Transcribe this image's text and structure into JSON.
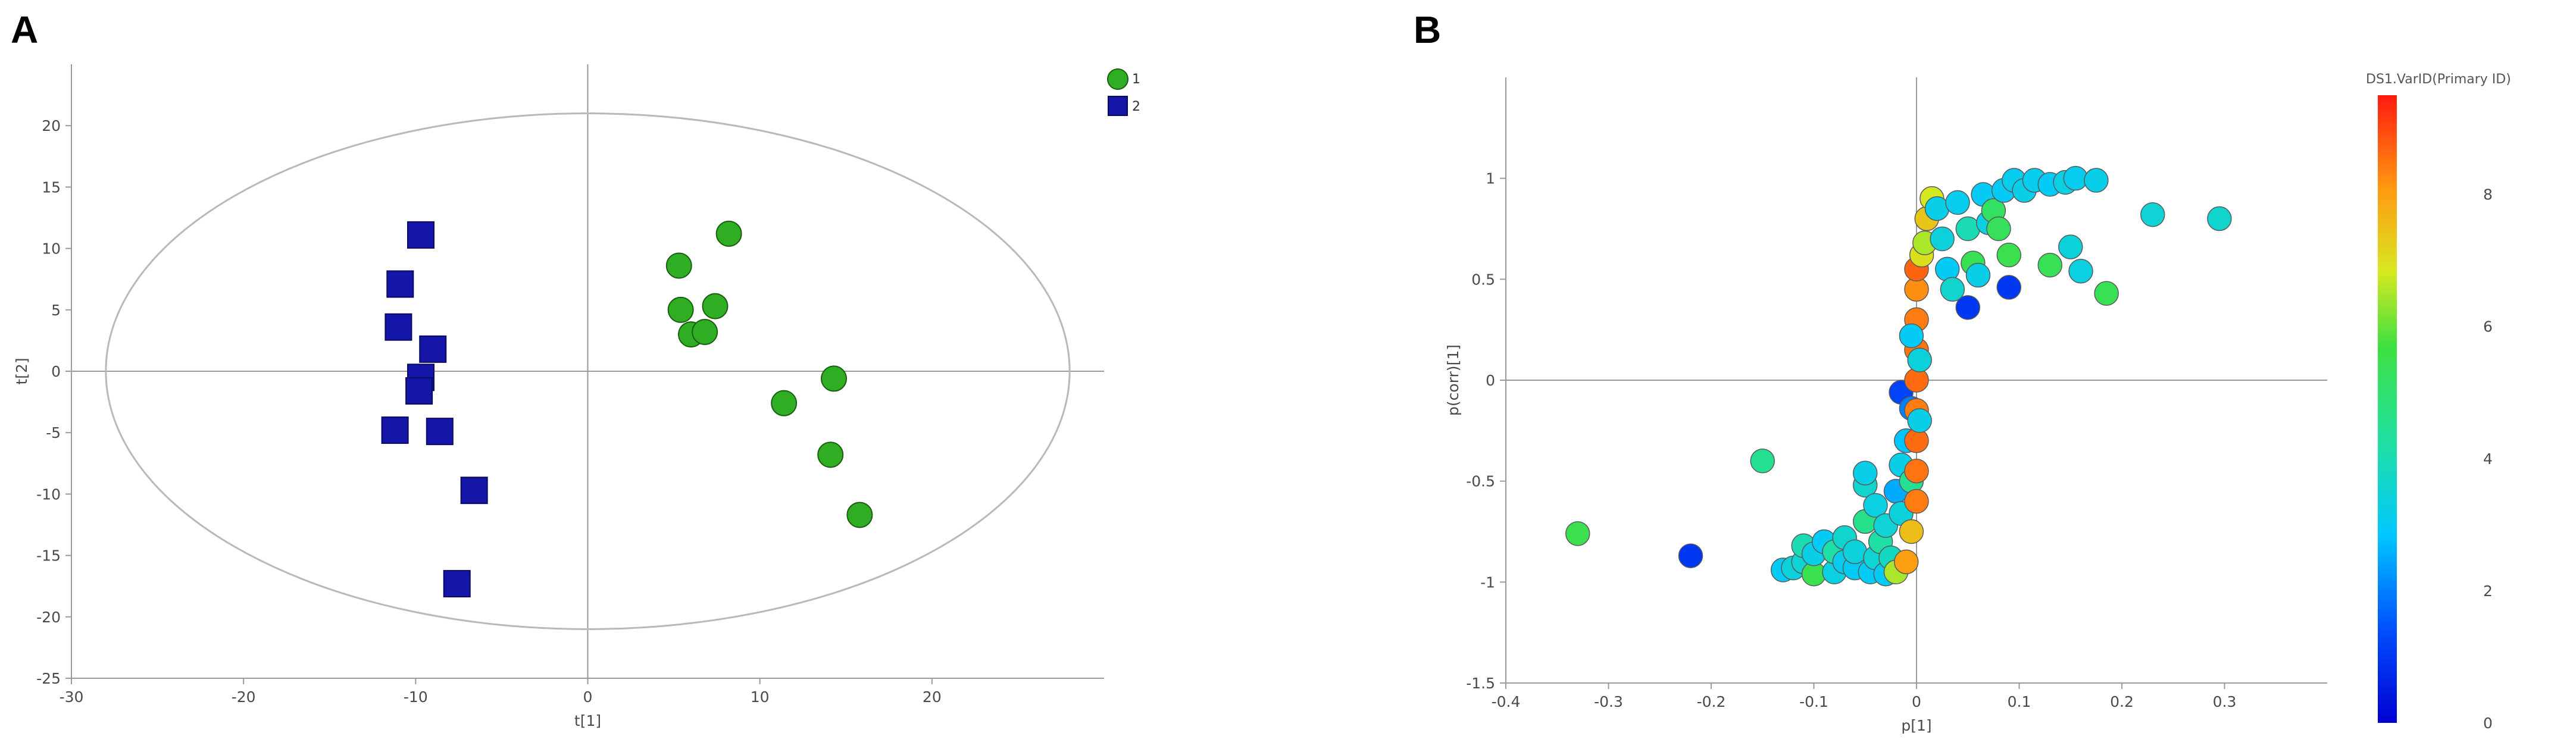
{
  "panels": [
    {
      "letter": "A"
    },
    {
      "letter": "B"
    }
  ],
  "chart_data": [
    {
      "type": "scatter",
      "xlabel": "t[1]",
      "ylabel": "t[2]",
      "xlim": [
        -30,
        30
      ],
      "ylim": [
        -25,
        25
      ],
      "xticks": [
        "-30",
        "-20",
        "-10",
        "0",
        "10",
        "20"
      ],
      "yticks": [
        "20",
        "15",
        "10",
        "5",
        "0",
        "-5",
        "-10",
        "-15",
        "-20",
        "-25"
      ],
      "legend": {
        "placement": "top-right"
      },
      "ellipse": {
        "cx": 0,
        "cy": 0,
        "rx": 28,
        "ry": 21
      },
      "series": [
        {
          "name": "1",
          "marker": "circle",
          "color": "#2fae24",
          "x": [
            5.3,
            8.2,
            5.4,
            7.4,
            6.0,
            6.8,
            11.4,
            14.3,
            14.1,
            15.8
          ],
          "y": [
            8.6,
            11.2,
            5.0,
            5.3,
            3.0,
            3.2,
            -2.6,
            -0.6,
            -6.8,
            -11.7
          ]
        },
        {
          "name": "2",
          "marker": "square",
          "color": "#1515a8",
          "x": [
            -9.7,
            -10.9,
            -11.0,
            -9.0,
            -9.7,
            -9.8,
            -11.2,
            -8.6,
            -6.6,
            -7.6
          ],
          "y": [
            11.1,
            7.1,
            3.6,
            1.8,
            -0.5,
            -1.6,
            -4.8,
            -4.9,
            -9.7,
            -17.3
          ]
        }
      ]
    },
    {
      "type": "scatter",
      "xlabel": "p[1]",
      "ylabel": "p(corr)[1]",
      "xlim": [
        -0.4,
        0.4
      ],
      "ylim": [
        -1.5,
        1.5
      ],
      "xticks": [
        "-0.4",
        "-0.3",
        "-0.2",
        "-0.1",
        "0",
        "0.1",
        "0.2",
        "0.3"
      ],
      "yticks": [
        "1",
        "0.5",
        "0",
        "-0.5",
        "-1",
        "-1.5"
      ],
      "colorbar": {
        "title": "DS1.VarID(Primary ID)",
        "ticks": [
          "8",
          "6",
          "4",
          "2",
          "0"
        ],
        "range": [
          0,
          9.5
        ]
      },
      "points": [
        [
          -0.33,
          -0.76,
          5.5
        ],
        [
          -0.22,
          -0.87,
          1.0
        ],
        [
          -0.15,
          -0.4,
          4.5
        ],
        [
          -0.13,
          -0.94,
          3.0
        ],
        [
          -0.12,
          -0.93,
          3.4
        ],
        [
          -0.11,
          -0.9,
          3.5
        ],
        [
          -0.11,
          -0.82,
          4.0
        ],
        [
          -0.1,
          -0.96,
          5.5
        ],
        [
          -0.1,
          -0.86,
          3.2
        ],
        [
          -0.09,
          -0.8,
          3.0
        ],
        [
          -0.08,
          -0.95,
          3.3
        ],
        [
          -0.08,
          -0.85,
          4.2
        ],
        [
          -0.07,
          -0.9,
          3.1
        ],
        [
          -0.07,
          -0.78,
          3.6
        ],
        [
          -0.06,
          -0.93,
          3.0
        ],
        [
          -0.06,
          -0.85,
          3.4
        ],
        [
          -0.05,
          -0.52,
          3.6
        ],
        [
          -0.05,
          -0.46,
          3.2
        ],
        [
          -0.05,
          -0.7,
          4.6
        ],
        [
          -0.045,
          -0.95,
          3.0
        ],
        [
          -0.04,
          -0.88,
          3.5
        ],
        [
          -0.04,
          -0.62,
          3.3
        ],
        [
          -0.035,
          -0.8,
          4.2
        ],
        [
          -0.03,
          -0.96,
          3.0
        ],
        [
          -0.03,
          -0.72,
          3.5
        ],
        [
          -0.025,
          -0.88,
          3.8
        ],
        [
          -0.02,
          -0.95,
          6.5
        ],
        [
          -0.02,
          -0.55,
          2.5
        ],
        [
          -0.015,
          -0.66,
          3.4
        ],
        [
          -0.01,
          -0.9,
          8.0
        ],
        [
          -0.015,
          -0.42,
          3.2
        ],
        [
          -0.01,
          -0.3,
          2.8
        ],
        [
          -0.005,
          -0.5,
          4.5
        ],
        [
          -0.005,
          -0.75,
          7.5
        ],
        [
          -0.015,
          -0.06,
          1.2
        ],
        [
          -0.005,
          -0.14,
          2.0
        ],
        [
          0.0,
          -0.6,
          8.4
        ],
        [
          0.0,
          -0.45,
          8.5
        ],
        [
          0.0,
          -0.3,
          8.6
        ],
        [
          0.0,
          -0.15,
          8.4
        ],
        [
          0.0,
          0.0,
          8.6
        ],
        [
          0.0,
          0.15,
          8.5
        ],
        [
          0.0,
          0.3,
          8.4
        ],
        [
          0.0,
          0.45,
          8.2
        ],
        [
          0.0,
          0.55,
          8.7
        ],
        [
          -0.005,
          0.22,
          3.0
        ],
        [
          0.003,
          -0.2,
          3.2
        ],
        [
          0.003,
          0.1,
          3.4
        ],
        [
          0.005,
          0.62,
          7.0
        ],
        [
          0.008,
          0.68,
          6.5
        ],
        [
          0.01,
          0.8,
          7.4
        ],
        [
          0.015,
          0.9,
          6.8
        ],
        [
          0.02,
          0.85,
          3.2
        ],
        [
          0.025,
          0.7,
          3.4
        ],
        [
          0.03,
          0.55,
          3.0
        ],
        [
          0.035,
          0.45,
          3.6
        ],
        [
          0.04,
          0.88,
          3.1
        ],
        [
          0.05,
          0.75,
          4.0
        ],
        [
          0.055,
          0.58,
          5.4
        ],
        [
          0.05,
          0.36,
          1.0
        ],
        [
          0.06,
          0.52,
          3.2
        ],
        [
          0.065,
          0.92,
          3.0
        ],
        [
          0.07,
          0.78,
          3.3
        ],
        [
          0.075,
          0.84,
          5.2
        ],
        [
          0.08,
          0.75,
          5.3
        ],
        [
          0.09,
          0.62,
          5.5
        ],
        [
          0.085,
          0.94,
          3.0
        ],
        [
          0.09,
          0.46,
          1.0
        ],
        [
          0.095,
          0.99,
          3.1
        ],
        [
          0.105,
          0.94,
          3.2
        ],
        [
          0.115,
          0.99,
          3.1
        ],
        [
          0.13,
          0.97,
          3.0
        ],
        [
          0.13,
          0.57,
          5.4
        ],
        [
          0.145,
          0.98,
          3.3
        ],
        [
          0.15,
          0.66,
          3.4
        ],
        [
          0.155,
          1.0,
          3.1
        ],
        [
          0.16,
          0.54,
          3.3
        ],
        [
          0.175,
          0.99,
          3.2
        ],
        [
          0.185,
          0.43,
          5.4
        ],
        [
          0.23,
          0.82,
          3.5
        ],
        [
          0.295,
          0.8,
          3.6
        ]
      ]
    }
  ]
}
